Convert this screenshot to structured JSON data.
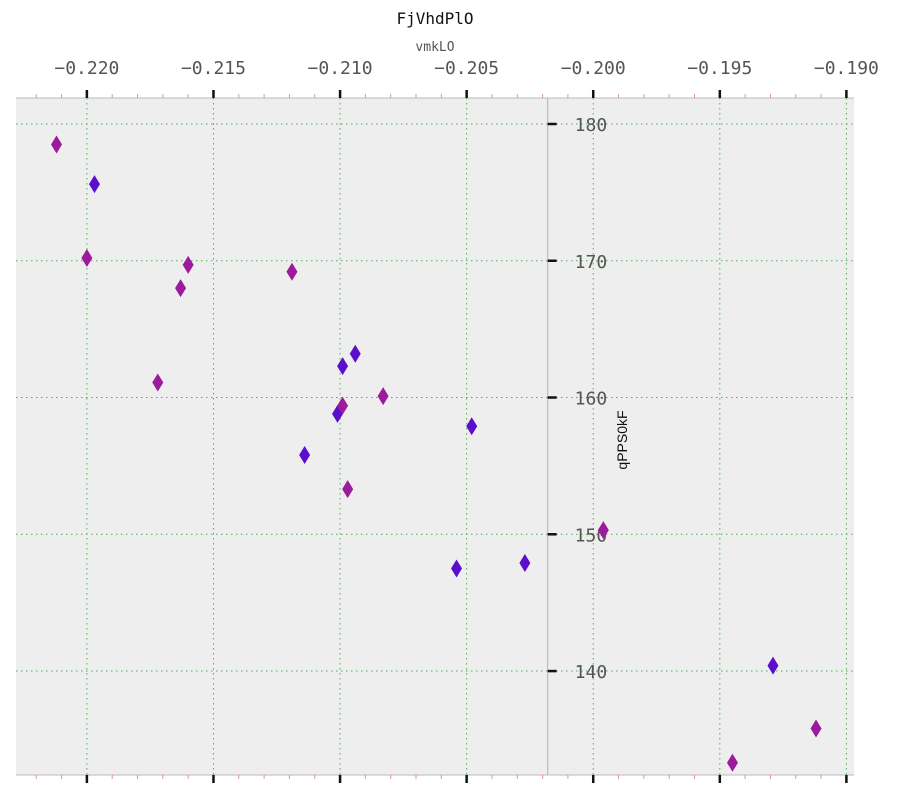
{
  "chart_data": {
    "type": "scatter",
    "title": "FjVhdPlO",
    "xlabel": "vmkLO",
    "ylabel": "qPPS0kF",
    "xlim": [
      -0.2228,
      -0.1897
    ],
    "ylim": [
      132.4,
      181.9
    ],
    "x_ticks": [
      -0.22,
      -0.215,
      -0.21,
      -0.205,
      -0.2,
      -0.195,
      -0.19
    ],
    "x_tick_labels": [
      "−0.220",
      "−0.215",
      "−0.210",
      "−0.205",
      "−0.200",
      "−0.195",
      "−0.190"
    ],
    "y_ticks": [
      140,
      150,
      160,
      170,
      180
    ],
    "y_tick_labels": [
      "140",
      "150",
      "160",
      "170",
      "180"
    ],
    "x_axis_position": "top",
    "y_axis_at_x": -0.2018,
    "grid": true,
    "marker": "diamond",
    "colors": {
      "series_a": "#5b0fcc",
      "series_b": "#9c1a9c",
      "background": "#eeeeee",
      "grid": "#4caf50"
    },
    "series": [
      {
        "color": "#5b0fcc",
        "points": [
          {
            "x": -0.2197,
            "y": 175.6
          },
          {
            "x": -0.2099,
            "y": 162.3
          },
          {
            "x": -0.2094,
            "y": 163.2
          },
          {
            "x": -0.2101,
            "y": 158.8
          },
          {
            "x": -0.2114,
            "y": 155.8
          },
          {
            "x": -0.2048,
            "y": 157.9
          },
          {
            "x": -0.2054,
            "y": 147.5
          },
          {
            "x": -0.2027,
            "y": 147.9
          },
          {
            "x": -0.1929,
            "y": 140.4
          }
        ]
      },
      {
        "color": "#9c1a9c",
        "points": [
          {
            "x": -0.2212,
            "y": 178.5
          },
          {
            "x": -0.22,
            "y": 170.2
          },
          {
            "x": -0.216,
            "y": 169.7
          },
          {
            "x": -0.2163,
            "y": 168.0
          },
          {
            "x": -0.2172,
            "y": 161.1
          },
          {
            "x": -0.2119,
            "y": 169.2
          },
          {
            "x": -0.2099,
            "y": 159.4
          },
          {
            "x": -0.2083,
            "y": 160.1
          },
          {
            "x": -0.2097,
            "y": 153.3
          },
          {
            "x": -0.1996,
            "y": 150.3
          },
          {
            "x": -0.1945,
            "y": 133.3
          },
          {
            "x": -0.1912,
            "y": 135.8
          }
        ]
      }
    ]
  }
}
